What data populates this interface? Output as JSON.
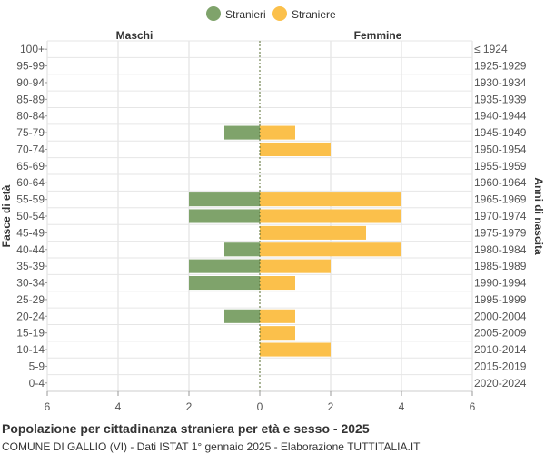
{
  "chart_data": {
    "type": "bar",
    "orientation": "horizontal-population-pyramid",
    "title": "Popolazione per cittadinanza straniera per età e sesso - 2025",
    "subtitle": "COMUNE DI GALLIO (VI) - Dati ISTAT 1° gennaio 2025 - Elaborazione TUTTITALIA.IT",
    "left_header": "Maschi",
    "right_header": "Femmine",
    "ylabel_left": "Fasce di età",
    "ylabel_right": "Anni di nascita",
    "xlim": [
      -6,
      6
    ],
    "x_ticks": [
      -6,
      -4,
      -2,
      0,
      2,
      4,
      6
    ],
    "x_tick_labels": [
      "6",
      "4",
      "2",
      "0",
      "2",
      "4",
      "6"
    ],
    "grid": true,
    "legend_position": "top-center",
    "categories": [
      "100+",
      "95-99",
      "90-94",
      "85-89",
      "80-84",
      "75-79",
      "70-74",
      "65-69",
      "60-64",
      "55-59",
      "50-54",
      "45-49",
      "40-44",
      "35-39",
      "30-34",
      "25-29",
      "20-24",
      "15-19",
      "10-14",
      "5-9",
      "0-4"
    ],
    "birth_years": [
      "≤ 1924",
      "1925-1929",
      "1930-1934",
      "1935-1939",
      "1940-1944",
      "1945-1949",
      "1950-1954",
      "1955-1959",
      "1960-1964",
      "1965-1969",
      "1970-1974",
      "1975-1979",
      "1980-1984",
      "1985-1989",
      "1990-1994",
      "1995-1999",
      "2000-2004",
      "2005-2009",
      "2010-2014",
      "2015-2019",
      "2020-2024"
    ],
    "series": [
      {
        "name": "Stranieri",
        "color": "#7fa36b",
        "side": "left",
        "values": [
          0,
          0,
          0,
          0,
          0,
          1,
          0,
          0,
          0,
          2,
          2,
          0,
          1,
          2,
          2,
          0,
          1,
          0,
          0,
          0,
          0
        ]
      },
      {
        "name": "Straniere",
        "color": "#fbc04b",
        "side": "right",
        "values": [
          0,
          0,
          0,
          0,
          0,
          1,
          2,
          0,
          0,
          4,
          4,
          3,
          4,
          2,
          1,
          0,
          1,
          1,
          2,
          0,
          0
        ]
      }
    ]
  }
}
